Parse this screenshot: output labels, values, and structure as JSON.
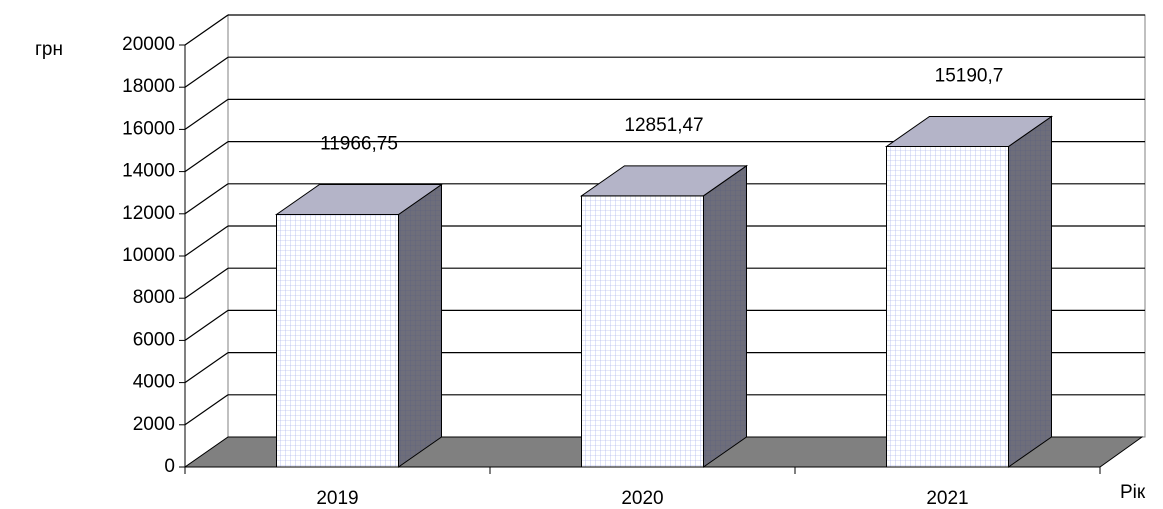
{
  "chart_data": {
    "type": "bar3d",
    "categories": [
      "2019",
      "2020",
      "2021"
    ],
    "values": [
      11966.75,
      12851.47,
      15190.7
    ],
    "value_labels": [
      "11966,75",
      "12851,47",
      "15190,7"
    ],
    "ylim": [
      0,
      20000
    ],
    "yticks": [
      0,
      2000,
      4000,
      6000,
      8000,
      10000,
      12000,
      14000,
      16000,
      18000,
      20000
    ],
    "y_label": "грн",
    "x_label": "Рік",
    "grid": true,
    "color": "#ffffff"
  }
}
